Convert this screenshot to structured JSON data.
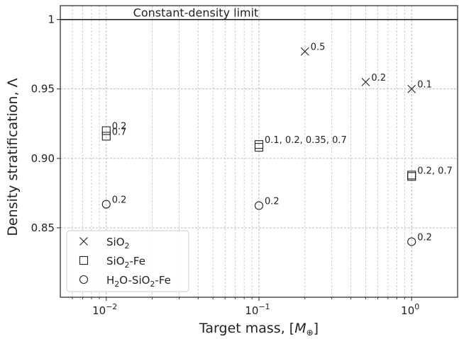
{
  "chart_data": {
    "type": "scatter",
    "title": "",
    "xlabel": "Target mass, [",
    "xlabel_symbol": "M",
    "xlabel_subscript": "⊕",
    "xlabel_end": "]",
    "ylabel": "Density stratification, Λ",
    "x_scale": "log",
    "xlim": [
      0.005,
      2.0
    ],
    "ylim": [
      0.8,
      1.01
    ],
    "grid": true,
    "legend_position": "lower-left",
    "x_ticks": [
      {
        "value": 0.01,
        "base": "10",
        "exp": "−2"
      },
      {
        "value": 0.1,
        "base": "10",
        "exp": "−1"
      },
      {
        "value": 1.0,
        "base": "10",
        "exp": "0"
      }
    ],
    "y_ticks": [
      {
        "value": 0.85,
        "label": "0.85"
      },
      {
        "value": 0.9,
        "label": "0.90"
      },
      {
        "value": 0.95,
        "label": "0.95"
      },
      {
        "value": 1.0,
        "label": "1"
      }
    ],
    "reference_line": {
      "y": 1.0,
      "label": "Constant-density limit"
    },
    "series": [
      {
        "name": "SiO2",
        "legend": {
          "main": "SiO",
          "sub": "2",
          "tail": ""
        },
        "marker": "x",
        "points": [
          {
            "x": 0.2,
            "y": 0.977,
            "label": "0.5"
          },
          {
            "x": 0.5,
            "y": 0.955,
            "label": "0.2"
          },
          {
            "x": 1.0,
            "y": 0.95,
            "label": "0.1"
          }
        ]
      },
      {
        "name": "SiO2-Fe",
        "legend": {
          "main": "SiO",
          "sub": "2",
          "tail": "-Fe"
        },
        "marker": "square",
        "points": [
          {
            "x": 0.01,
            "y": 0.92,
            "label": "0.2"
          },
          {
            "x": 0.01,
            "y": 0.916,
            "label": "0.7"
          },
          {
            "x": 0.1,
            "y": 0.91,
            "label": "0.1, 0.2, 0.35, 0.7"
          },
          {
            "x": 0.1,
            "y": 0.908,
            "label": ""
          },
          {
            "x": 1.0,
            "y": 0.888,
            "label": "0.2, 0.7"
          },
          {
            "x": 1.0,
            "y": 0.887,
            "label": ""
          }
        ]
      },
      {
        "name": "H2O-SiO2-Fe",
        "legend": {
          "main": "H",
          "sub": "2",
          "tail": "O-SiO",
          "sub2": "2",
          "tail2": "-Fe"
        },
        "marker": "circle",
        "points": [
          {
            "x": 0.01,
            "y": 0.867,
            "label": "0.2"
          },
          {
            "x": 0.1,
            "y": 0.866,
            "label": "0.2"
          },
          {
            "x": 1.0,
            "y": 0.84,
            "label": "0.2"
          }
        ]
      }
    ]
  }
}
